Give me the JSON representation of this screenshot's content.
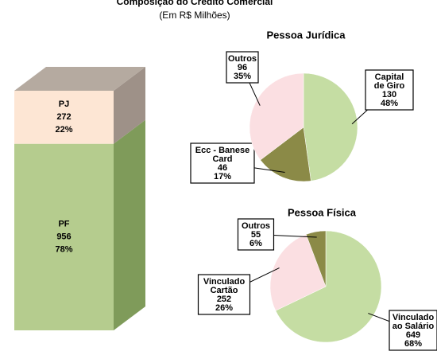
{
  "title": "Composição do Crédito Comercial",
  "subtitle": "(Em R$ Milhões)",
  "chart_data": [
    {
      "type": "bar",
      "stacked": true,
      "series": [
        {
          "name": "PF",
          "values": [
            956
          ],
          "percent_labels": [
            "78%"
          ],
          "color": "#b5cc8e",
          "side_color": "#7f9b5a"
        },
        {
          "name": "PJ",
          "values": [
            272
          ],
          "percent_labels": [
            "22%"
          ],
          "color": "#fde6d4",
          "side_color": "#9e9188",
          "top_color": "#b5aaa0"
        }
      ]
    },
    {
      "type": "pie",
      "title": "Pessoa Jurídica",
      "categories": [
        [
          "Capital",
          "de Giro"
        ],
        [
          "Ecc - Banese",
          "Card"
        ],
        [
          "Outros"
        ]
      ],
      "values": [
        130,
        46,
        96
      ],
      "percent_labels": [
        "48%",
        "17%",
        "35%"
      ],
      "colors": [
        "#c5dda3",
        "#8b8a47",
        "#fbdfe2"
      ]
    },
    {
      "type": "pie",
      "title": "Pessoa Física",
      "categories": [
        [
          "Vinculado",
          "ao Salário"
        ],
        [
          "Vinculado",
          "Cartão"
        ],
        [
          "Outros"
        ]
      ],
      "values": [
        649,
        252,
        55
      ],
      "percent_labels": [
        "68%",
        "26%",
        "6%"
      ],
      "colors": [
        "#c5dda3",
        "#fbdfe2",
        "#8b8a47"
      ]
    }
  ]
}
